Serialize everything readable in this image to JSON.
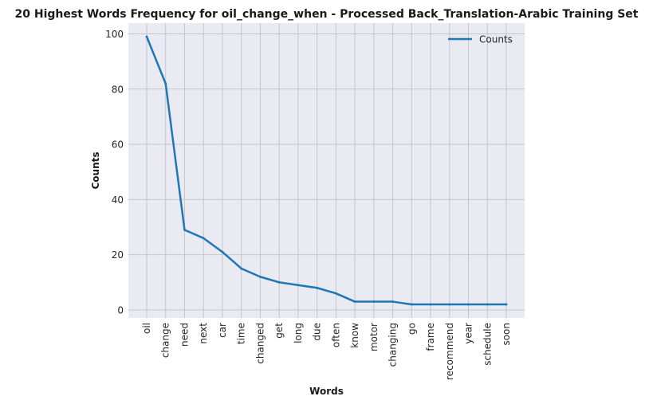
{
  "chart_data": {
    "type": "line",
    "title": "20 Highest Words Frequency for oil_change_when - Processed Back_Translation-Arabic Training Set",
    "xlabel": "Words",
    "ylabel": "Counts",
    "categories": [
      "oil",
      "change",
      "need",
      "next",
      "car",
      "time",
      "changed",
      "get",
      "long",
      "due",
      "often",
      "know",
      "motor",
      "changing",
      "go",
      "frame",
      "recommend",
      "year",
      "schedule",
      "soon"
    ],
    "series": [
      {
        "name": "Counts",
        "values": [
          99,
          82,
          29,
          26,
          21,
          15,
          12,
          10,
          9,
          8,
          6,
          3,
          3,
          3,
          2,
          2,
          2,
          2,
          2,
          2
        ]
      }
    ],
    "yticks": [
      0,
      20,
      40,
      60,
      80,
      100
    ],
    "ylim": [
      -2.9,
      103.9
    ],
    "grid": true,
    "legend": "top-right",
    "colors": {
      "line": "#1f77b4",
      "plot_bg": "#eaeaf2",
      "grid": "#c5c5ca"
    }
  }
}
